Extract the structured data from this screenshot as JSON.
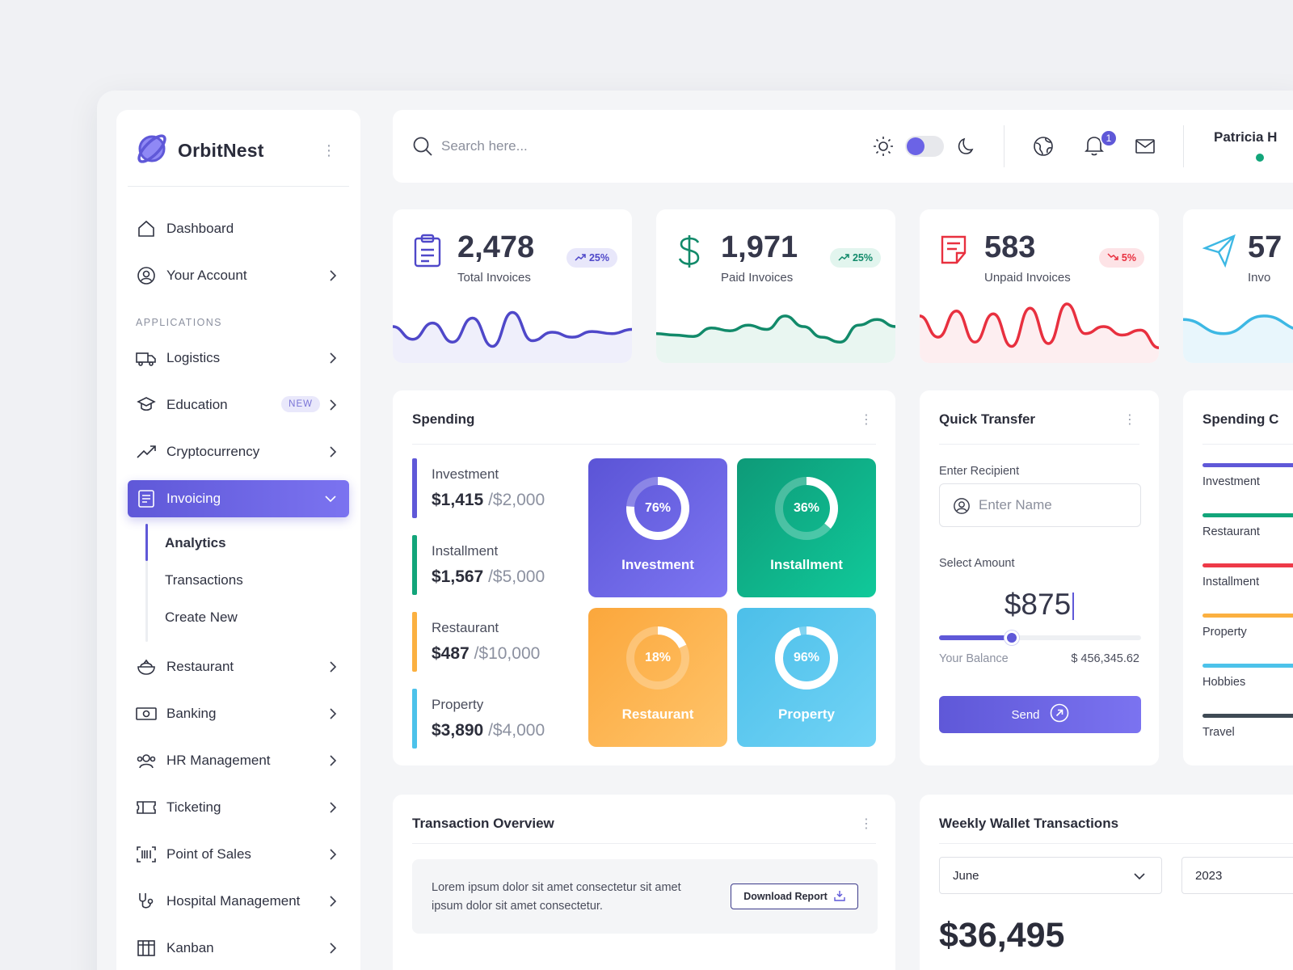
{
  "brand": {
    "name": "OrbitNest"
  },
  "sidebar": {
    "section_label": "APPLICATIONS",
    "items": [
      {
        "label": "Dashboard",
        "icon": "home-icon"
      },
      {
        "label": "Your Account",
        "icon": "user-circle-icon"
      },
      {
        "label": "Logistics",
        "icon": "truck-icon"
      },
      {
        "label": "Education",
        "icon": "graduation-icon",
        "badge": "NEW"
      },
      {
        "label": "Cryptocurrency",
        "icon": "trend-up-icon"
      },
      {
        "label": "Invoicing",
        "icon": "invoice-icon",
        "active": true
      },
      {
        "label": "Restaurant",
        "icon": "food-bowl-icon"
      },
      {
        "label": "Banking",
        "icon": "cash-icon"
      },
      {
        "label": "HR Management",
        "icon": "users-icon"
      },
      {
        "label": "Ticketing",
        "icon": "ticket-icon"
      },
      {
        "label": "Point of Sales",
        "icon": "barcode-icon"
      },
      {
        "label": "Hospital Management",
        "icon": "stethoscope-icon"
      },
      {
        "label": "Kanban",
        "icon": "kanban-icon"
      }
    ],
    "invoicing_sub": [
      "Analytics",
      "Transactions",
      "Create New"
    ]
  },
  "topbar": {
    "search_placeholder": "Search here...",
    "notification_count": "1",
    "user_name": "Patricia H"
  },
  "stats": [
    {
      "value": "2,478",
      "label": "Total Invoices",
      "change": "25%",
      "trend": "up",
      "color": "#4f48c9",
      "fill": "#efeffb",
      "pill_bg": "#e8e7fa",
      "pill_fg": "#4f48c9",
      "series": [
        40,
        22,
        45,
        18,
        52,
        12,
        60,
        20,
        32,
        25,
        33,
        30,
        36
      ]
    },
    {
      "value": "1,971",
      "label": "Paid Invoices",
      "change": "25%",
      "trend": "up",
      "color": "#128a6a",
      "fill": "#e9f6f1",
      "pill_bg": "#e2f5ee",
      "pill_fg": "#128a6a",
      "series": [
        30,
        28,
        26,
        38,
        34,
        42,
        36,
        55,
        40,
        25,
        18,
        42,
        50,
        40
      ]
    },
    {
      "value": "583",
      "label": "Unpaid Invoices",
      "change": "5%",
      "trend": "down",
      "color": "#e8303f",
      "fill": "#fdeef0",
      "pill_bg": "#fde3e6",
      "pill_fg": "#e8303f",
      "series": [
        55,
        25,
        62,
        18,
        58,
        12,
        66,
        16,
        72,
        30,
        40,
        28,
        35,
        10
      ]
    },
    {
      "value": "57",
      "label": "Invo",
      "color": "#3db8e4",
      "fill": "#e8f6fc",
      "series": [
        50,
        30,
        55,
        35
      ]
    }
  ],
  "spending": {
    "title": "Spending",
    "rows": [
      {
        "name": "Investment",
        "amount": "$1,415",
        "limit": "/$2,000",
        "color": "#5f58d8"
      },
      {
        "name": "Installment",
        "amount": "$1,567",
        "limit": "/$5,000",
        "color": "#12a57a"
      },
      {
        "name": "Restaurant",
        "amount": "$487",
        "limit": "/$10,000",
        "color": "#fbb040"
      },
      {
        "name": "Property",
        "amount": "$3,890",
        "limit": "/$4,000",
        "color": "#4cc2ea"
      }
    ],
    "tiles": [
      {
        "name": "Investment",
        "percent": "76%",
        "progress": 0.76,
        "from": "#5b54d6",
        "to": "#7d76f2"
      },
      {
        "name": "Installment",
        "percent": "36%",
        "progress": 0.36,
        "from": "#0e9a78",
        "to": "#10c99a"
      },
      {
        "name": "Restaurant",
        "percent": "18%",
        "progress": 0.18,
        "from": "#fba73c",
        "to": "#ffc46a"
      },
      {
        "name": "Property",
        "percent": "96%",
        "progress": 0.96,
        "from": "#4cbfe9",
        "to": "#71d3f6"
      }
    ]
  },
  "quick_transfer": {
    "title": "Quick Transfer",
    "recipient_label": "Enter Recipient",
    "recipient_placeholder": "Enter Name",
    "amount_label": "Select Amount",
    "amount": "$875",
    "slider_level": 0.36,
    "balance_label": "Your Balance",
    "balance_value": "$ 456,345.62",
    "send_label": "Send"
  },
  "spending_categories": {
    "title": "Spending C",
    "items": [
      {
        "name": "Investment",
        "color": "#5f58d8"
      },
      {
        "name": "Restaurant",
        "color": "#12a57a"
      },
      {
        "name": "Installment",
        "color": "#ee3a48"
      },
      {
        "name": "Property",
        "color": "#fbb040"
      },
      {
        "name": "Hobbies",
        "color": "#4cc2ea"
      },
      {
        "name": "Travel",
        "color": "#3e4a54"
      }
    ]
  },
  "transaction_overview": {
    "title": "Transaction Overview",
    "text": "Lorem ipsum dolor sit amet consectetur sit amet ipsum dolor sit amet consectetur.",
    "download_label": "Download Report"
  },
  "weekly_wallet": {
    "title": "Weekly Wallet Transactions",
    "month": "June",
    "year": "2023",
    "total": "$36,495"
  }
}
